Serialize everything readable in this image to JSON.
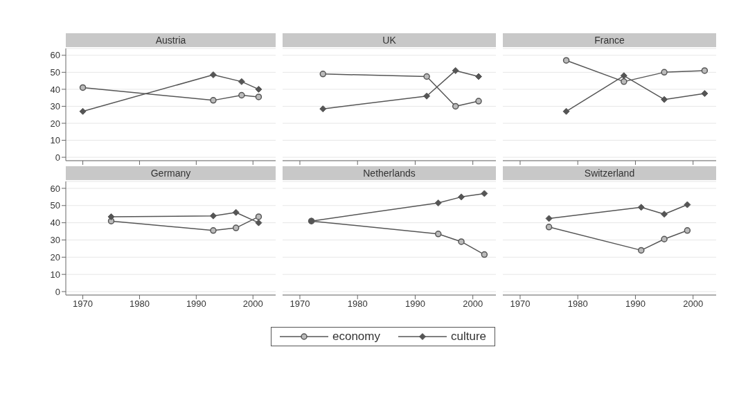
{
  "chart_data": [
    {
      "type": "line",
      "title": "Austria",
      "xlim": [
        1967,
        2004
      ],
      "xticks": [
        1970,
        1980,
        1990,
        2000
      ],
      "ylim": [
        -2,
        64
      ],
      "yticks": [
        0,
        10,
        20,
        30,
        40,
        50,
        60
      ],
      "grid": "y",
      "tick_labels": "y",
      "series": [
        {
          "color": "#555555",
          "marker": "circle",
          "x": [
            1970,
            1993,
            1998,
            2001
          ],
          "values": [
            41,
            33.5,
            36.5,
            35.5
          ]
        },
        {
          "color": "#555555",
          "marker": "diamond",
          "x": [
            1970,
            1993,
            1998,
            2001
          ],
          "values": [
            27,
            48.5,
            44.5,
            40
          ]
        }
      ]
    },
    {
      "type": "line",
      "title": "UK",
      "xlim": [
        1967,
        2004
      ],
      "xticks": [
        1970,
        1980,
        1990,
        2000
      ],
      "ylim": [
        -2,
        64
      ],
      "yticks": [
        0,
        10,
        20,
        30,
        40,
        50,
        60
      ],
      "grid": "y",
      "tick_labels": false,
      "series": [
        {
          "color": "#555555",
          "marker": "circle",
          "x": [
            1974,
            1992,
            1997,
            2001
          ],
          "values": [
            49,
            47.5,
            30,
            33
          ]
        },
        {
          "color": "#555555",
          "marker": "diamond",
          "x": [
            1974,
            1992,
            1997,
            2001
          ],
          "values": [
            28.5,
            36,
            51,
            47.5
          ]
        }
      ]
    },
    {
      "type": "line",
      "title": "France",
      "xlim": [
        1967,
        2004
      ],
      "xticks": [
        1970,
        1980,
        1990,
        2000
      ],
      "ylim": [
        -2,
        64
      ],
      "yticks": [
        0,
        10,
        20,
        30,
        40,
        50,
        60
      ],
      "grid": "y",
      "tick_labels": false,
      "series": [
        {
          "color": "#555555",
          "marker": "circle",
          "x": [
            1978,
            1988,
            1995,
            2002
          ],
          "values": [
            57,
            44.5,
            50,
            51
          ]
        },
        {
          "color": "#555555",
          "marker": "diamond",
          "x": [
            1978,
            1988,
            1995,
            2002
          ],
          "values": [
            27,
            48,
            34,
            37.5
          ]
        }
      ]
    },
    {
      "type": "line",
      "title": "Germany",
      "xlim": [
        1967,
        2004
      ],
      "xticks": [
        1970,
        1980,
        1990,
        2000
      ],
      "ylim": [
        -2,
        64
      ],
      "yticks": [
        0,
        10,
        20,
        30,
        40,
        50,
        60
      ],
      "grid": "y",
      "series": [
        {
          "color": "#555555",
          "marker": "circle",
          "x": [
            1975,
            1993,
            1997,
            2001
          ],
          "values": [
            41,
            35.5,
            37,
            43.5
          ]
        },
        {
          "color": "#555555",
          "marker": "diamond",
          "x": [
            1975,
            1993,
            1997,
            2001
          ],
          "values": [
            43.5,
            44,
            46,
            40
          ]
        }
      ]
    },
    {
      "type": "line",
      "title": "Netherlands",
      "xlim": [
        1967,
        2004
      ],
      "xticks": [
        1970,
        1980,
        1990,
        2000
      ],
      "ylim": [
        -2,
        64
      ],
      "yticks": [
        0,
        10,
        20,
        30,
        40,
        50,
        60
      ],
      "grid": "y",
      "tick_labels": "x",
      "series": [
        {
          "color": "#555555",
          "marker": "circle",
          "x": [
            1972,
            1994,
            1998,
            2002
          ],
          "values": [
            41,
            33.5,
            29,
            21.5
          ]
        },
        {
          "color": "#555555",
          "marker": "diamond",
          "x": [
            1972,
            1994,
            1998,
            2002
          ],
          "values": [
            41,
            51.5,
            55,
            57
          ]
        }
      ]
    },
    {
      "type": "line",
      "title": "Switzerland",
      "xlim": [
        1967,
        2004
      ],
      "xticks": [
        1970,
        1980,
        1990,
        2000
      ],
      "ylim": [
        -2,
        64
      ],
      "yticks": [
        0,
        10,
        20,
        30,
        40,
        50,
        60
      ],
      "grid": "y",
      "tick_labels": "x",
      "legend": "bottom",
      "series": [
        {
          "name": "economy",
          "color": "#555555",
          "marker": "circle",
          "x": [
            1975,
            1991,
            1995,
            1999
          ],
          "values": [
            37.5,
            24,
            30.5,
            35.5
          ]
        },
        {
          "name": "culture",
          "color": "#555555",
          "marker": "diamond",
          "x": [
            1975,
            1991,
            1995,
            1999
          ],
          "values": [
            42.5,
            49,
            45,
            50.5
          ]
        }
      ]
    }
  ]
}
